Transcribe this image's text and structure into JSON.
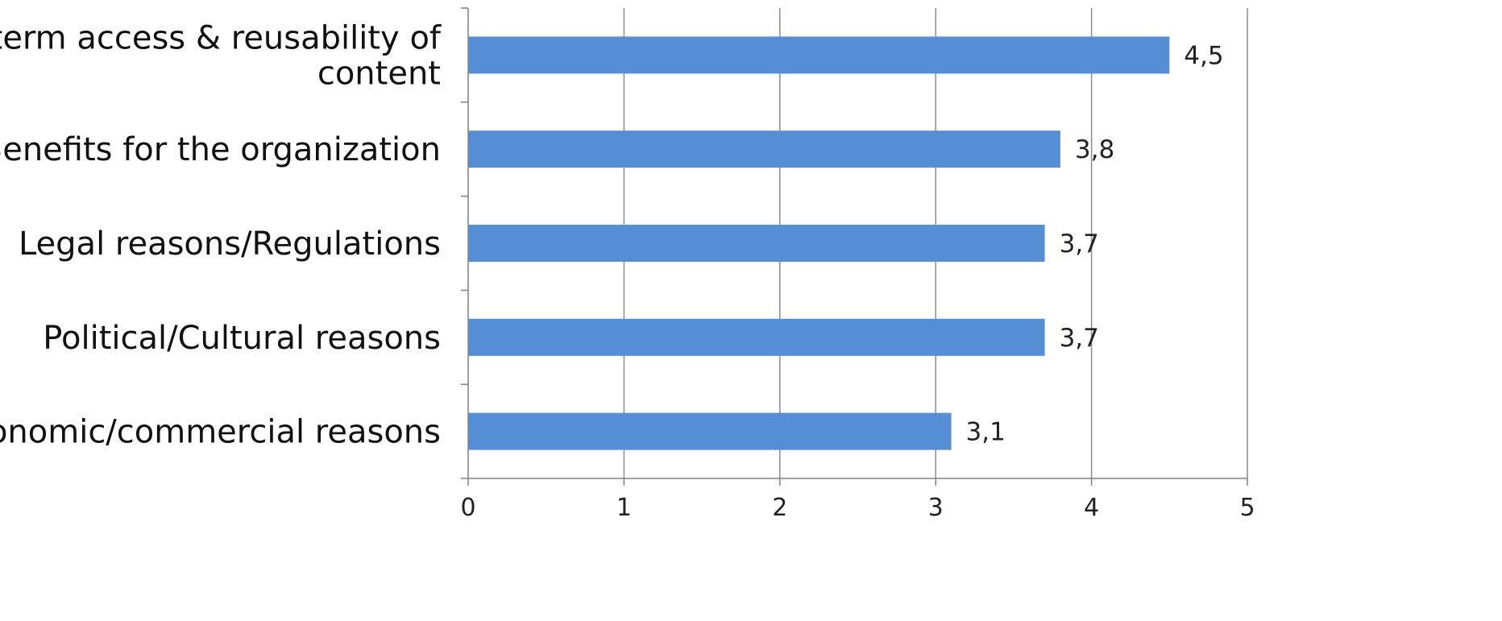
{
  "chart_data": {
    "type": "bar",
    "orientation": "horizontal",
    "categories": [
      "Long term access & reusability of content",
      "Benefits for the organization",
      "Legal reasons/Regulations",
      "Political/Cultural reasons",
      "Economic/commercial reasons"
    ],
    "label_lines": [
      [
        "Long term access & reusability of",
        "content"
      ],
      [
        "Benefits for the organization"
      ],
      [
        "Legal reasons/Regulations"
      ],
      [
        "Political/Cultural reasons"
      ],
      [
        "Economic/commercial reasons"
      ]
    ],
    "values": [
      4.5,
      3.8,
      3.7,
      3.7,
      3.1
    ],
    "data_labels": [
      "4,5",
      "3,8",
      "3,7",
      "3,7",
      "3,1"
    ],
    "xlim": [
      0,
      5
    ],
    "x_ticks": [
      "0",
      "1",
      "2",
      "3",
      "4",
      "5"
    ],
    "grid": "vertical",
    "legend": "none",
    "title": "",
    "xlabel": "",
    "ylabel": "",
    "colors": {
      "bar": "#558ED5",
      "grid": "#8C8C8C",
      "axis": "#808080"
    }
  }
}
